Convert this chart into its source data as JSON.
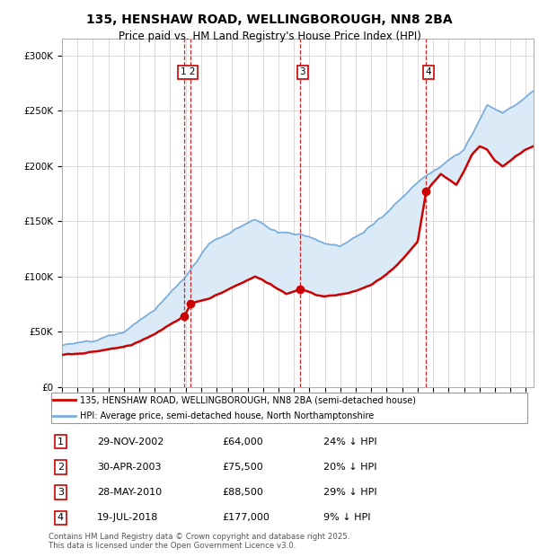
{
  "title1": "135, HENSHAW ROAD, WELLINGBOROUGH, NN8 2BA",
  "title2": "Price paid vs. HM Land Registry's House Price Index (HPI)",
  "ylabel_ticks": [
    "£0",
    "£50K",
    "£100K",
    "£150K",
    "£200K",
    "£250K",
    "£300K"
  ],
  "ytick_values": [
    0,
    50000,
    100000,
    150000,
    200000,
    250000,
    300000
  ],
  "ylim": [
    0,
    315000
  ],
  "xlim_start": 1995.0,
  "xlim_end": 2025.5,
  "transactions": [
    {
      "label": "1",
      "date_num": 2002.91,
      "price": 64000,
      "pct": "24%",
      "date_str": "29-NOV-2002"
    },
    {
      "label": "2",
      "date_num": 2003.33,
      "price": 75500,
      "pct": "20%",
      "date_str": "30-APR-2003"
    },
    {
      "label": "3",
      "date_num": 2010.41,
      "price": 88500,
      "pct": "29%",
      "date_str": "28-MAY-2010"
    },
    {
      "label": "4",
      "date_num": 2018.54,
      "price": 177000,
      "pct": "9%",
      "date_str": "19-JUL-2018"
    }
  ],
  "red_line_color": "#cc0000",
  "blue_line_color": "#7aaddc",
  "blue_fill_color": "#daeaf7",
  "vline_color": "#cc0000",
  "legend_label_red": "135, HENSHAW ROAD, WELLINGBOROUGH, NN8 2BA (semi-detached house)",
  "legend_label_blue": "HPI: Average price, semi-detached house, North Northamptonshire",
  "footer": "Contains HM Land Registry data © Crown copyright and database right 2025.\nThis data is licensed under the Open Government Licence v3.0.",
  "table_rows": [
    [
      "1",
      "29-NOV-2002",
      "£64,000",
      "24% ↓ HPI"
    ],
    [
      "2",
      "30-APR-2003",
      "£75,500",
      "20% ↓ HPI"
    ],
    [
      "3",
      "28-MAY-2010",
      "£88,500",
      "29% ↓ HPI"
    ],
    [
      "4",
      "19-JUL-2018",
      "£177,000",
      "9% ↓ HPI"
    ]
  ],
  "hpi_keypoints": [
    [
      1995.0,
      38000
    ],
    [
      1997.0,
      42000
    ],
    [
      1999.0,
      50000
    ],
    [
      2001.0,
      70000
    ],
    [
      2003.0,
      100000
    ],
    [
      2004.5,
      130000
    ],
    [
      2007.5,
      152000
    ],
    [
      2009.0,
      140000
    ],
    [
      2010.5,
      138000
    ],
    [
      2012.0,
      130000
    ],
    [
      2013.0,
      128000
    ],
    [
      2014.5,
      140000
    ],
    [
      2016.0,
      158000
    ],
    [
      2018.0,
      185000
    ],
    [
      2019.5,
      200000
    ],
    [
      2021.0,
      215000
    ],
    [
      2022.5,
      255000
    ],
    [
      2023.5,
      248000
    ],
    [
      2025.0,
      262000
    ],
    [
      2025.5,
      268000
    ]
  ],
  "red_keypoints": [
    [
      1995.0,
      29000
    ],
    [
      1996.5,
      31000
    ],
    [
      1998.0,
      34000
    ],
    [
      1999.5,
      38000
    ],
    [
      2001.0,
      48000
    ],
    [
      2002.0,
      57000
    ],
    [
      2002.91,
      64000
    ],
    [
      2003.33,
      75500
    ],
    [
      2004.5,
      80000
    ],
    [
      2006.0,
      90000
    ],
    [
      2007.5,
      100000
    ],
    [
      2008.5,
      93000
    ],
    [
      2009.5,
      84000
    ],
    [
      2010.41,
      88500
    ],
    [
      2011.0,
      86000
    ],
    [
      2011.5,
      83000
    ],
    [
      2012.0,
      82000
    ],
    [
      2013.0,
      84000
    ],
    [
      2014.0,
      87000
    ],
    [
      2015.0,
      93000
    ],
    [
      2016.0,
      102000
    ],
    [
      2017.0,
      115000
    ],
    [
      2018.0,
      132000
    ],
    [
      2018.54,
      177000
    ],
    [
      2019.0,
      185000
    ],
    [
      2019.5,
      193000
    ],
    [
      2020.0,
      188000
    ],
    [
      2020.5,
      183000
    ],
    [
      2021.0,
      195000
    ],
    [
      2021.5,
      210000
    ],
    [
      2022.0,
      218000
    ],
    [
      2022.5,
      215000
    ],
    [
      2023.0,
      205000
    ],
    [
      2023.5,
      200000
    ],
    [
      2024.0,
      205000
    ],
    [
      2024.5,
      210000
    ],
    [
      2025.0,
      215000
    ],
    [
      2025.5,
      218000
    ]
  ]
}
